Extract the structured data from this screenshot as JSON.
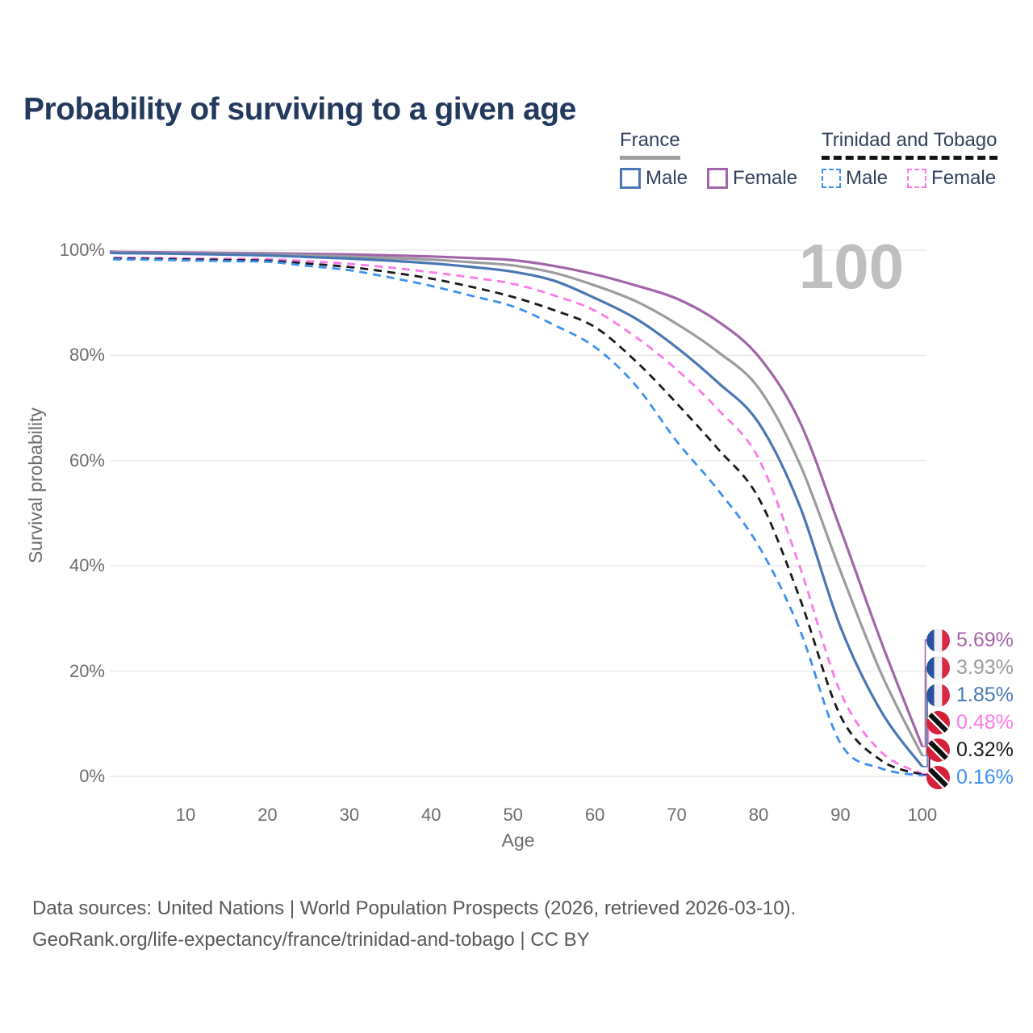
{
  "page": {
    "title": "Probability of surviving to a given age"
  },
  "legend": {
    "groups": [
      {
        "label": "France",
        "line_style": "solid",
        "line_color": "#9e9e9e",
        "items": [
          {
            "label": "Male",
            "swatch_color": "#4a77b4",
            "swatch_style": "solid"
          },
          {
            "label": "Female",
            "swatch_color": "#a365a9",
            "swatch_style": "solid"
          }
        ]
      },
      {
        "label": "Trinidad and Tobago",
        "line_style": "dashed",
        "line_color": "#141414",
        "items": [
          {
            "label": "Male",
            "swatch_color": "#3e91f0",
            "swatch_style": "dashed"
          },
          {
            "label": "Female",
            "swatch_color": "#fb7ae8",
            "swatch_style": "dashed"
          }
        ]
      }
    ]
  },
  "chart_data": {
    "type": "line",
    "title": "Probability of surviving to a given age",
    "xlabel": "Age",
    "ylabel": "Survival probability",
    "watermark_age": "100",
    "xlim": [
      0,
      100
    ],
    "ylim": [
      0,
      100
    ],
    "x_ticks": [
      10,
      20,
      30,
      40,
      50,
      60,
      70,
      80,
      90,
      100
    ],
    "y_tick_values": [
      0,
      20,
      40,
      60,
      80,
      100
    ],
    "y_tick_labels": [
      "0%",
      "20%",
      "40%",
      "60%",
      "80%",
      "100%"
    ],
    "grid": "horizontal",
    "legend_position": "top-right",
    "ages": [
      0,
      1,
      5,
      10,
      15,
      20,
      25,
      30,
      35,
      40,
      45,
      50,
      55,
      60,
      65,
      70,
      75,
      80,
      85,
      90,
      95,
      100
    ],
    "series": [
      {
        "id": "france-female",
        "country": "France",
        "sex": "Female",
        "color": "#a365a9",
        "style": "solid",
        "flag": "france",
        "end_label": "5.69%",
        "end_value": 5.69,
        "values": [
          100,
          99.7,
          99.62,
          99.55,
          99.48,
          99.4,
          99.3,
          99.2,
          99.0,
          98.8,
          98.5,
          98.1,
          97.0,
          95.4,
          93.3,
          90.8,
          86.5,
          79.8,
          67.5,
          47.0,
          25.5,
          5.69
        ]
      },
      {
        "id": "france-both-sexes",
        "country": "France",
        "sex": "Both sexes",
        "color": "#9c9c9e",
        "style": "solid",
        "flag": "france",
        "end_label": "3.93%",
        "end_value": 3.93,
        "values": [
          100,
          99.6,
          99.5,
          99.42,
          99.32,
          99.2,
          99.0,
          98.8,
          98.5,
          98.2,
          97.7,
          97.1,
          95.7,
          93.3,
          90.3,
          86.0,
          80.7,
          73.8,
          59.5,
          39.0,
          19.5,
          3.93
        ]
      },
      {
        "id": "france-male",
        "country": "France",
        "sex": "Male",
        "color": "#4a77b4",
        "style": "solid",
        "flag": "france",
        "end_label": "1.85%",
        "end_value": 1.85,
        "values": [
          100,
          99.5,
          99.4,
          99.3,
          99.15,
          99.0,
          98.7,
          98.4,
          98.0,
          97.5,
          96.8,
          95.9,
          94.2,
          90.9,
          87.0,
          81.5,
          74.9,
          67.2,
          51.5,
          28.4,
          12.3,
          1.85
        ]
      },
      {
        "id": "trinidad-and-tobago-female",
        "country": "Trinidad and Tobago",
        "sex": "Female",
        "color": "#fb7ae8",
        "style": "dashed",
        "flag": "trinidad-and-tobago",
        "end_label": "0.48%",
        "end_value": 0.48,
        "values": [
          100,
          98.6,
          98.55,
          98.45,
          98.38,
          98.3,
          97.9,
          97.4,
          96.7,
          95.8,
          94.8,
          93.6,
          91.4,
          88.5,
          83.5,
          77.3,
          69.8,
          60.4,
          40.0,
          16.0,
          4.6,
          0.48
        ]
      },
      {
        "id": "trinidad-and-tobago-both-sexes",
        "country": "Trinidad and Tobago",
        "sex": "Both sexes",
        "color": "#1a1a1a",
        "style": "dashed",
        "flag": "trinidad-and-tobago",
        "end_label": "0.32%",
        "end_value": 0.32,
        "values": [
          100,
          98.45,
          98.38,
          98.25,
          98.13,
          98.0,
          97.45,
          96.8,
          95.8,
          94.6,
          93.0,
          91.1,
          88.6,
          85.4,
          78.9,
          70.9,
          62.3,
          52.9,
          34.0,
          11.5,
          3.0,
          0.32
        ]
      },
      {
        "id": "trinidad-and-tobago-male",
        "country": "Trinidad and Tobago",
        "sex": "Male",
        "color": "#3e91f0",
        "style": "dashed",
        "flag": "trinidad-and-tobago",
        "end_label": "0.16%",
        "end_value": 0.16,
        "values": [
          100,
          98.3,
          98.2,
          98.05,
          97.9,
          97.8,
          97.0,
          96.2,
          94.8,
          93.2,
          91.3,
          89.3,
          85.8,
          81.6,
          74.3,
          63.7,
          54.5,
          43.8,
          28.0,
          6.3,
          1.5,
          0.16
        ]
      }
    ]
  },
  "footer": {
    "line1": "Data sources: United Nations | World Population Prospects (2026, retrieved 2026-03-10).",
    "line2": "GeoRank.org/life-expectancy/france/trinidad-and-tobago | CC BY"
  }
}
